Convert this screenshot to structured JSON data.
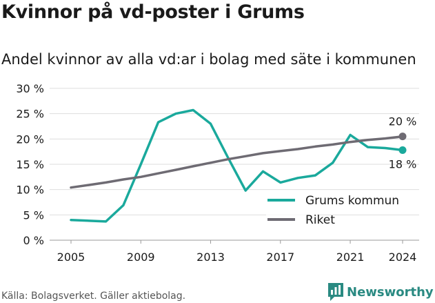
{
  "title": "Kvinnor på vd-poster i Grums",
  "subtitle": "Andel kvinnor av alla vd:ar i bolag med säte i kommunen",
  "source": "Källa: Bolagsverket. Gäller aktiebolag.",
  "brand": "Newsworthy",
  "colors": {
    "grums": "#1aa99c",
    "riket": "#6e6b73",
    "grid": "#dddddd",
    "text": "#1a1a1a"
  },
  "chart_data": {
    "type": "line",
    "x": [
      2005,
      2006,
      2007,
      2008,
      2009,
      2010,
      2011,
      2012,
      2013,
      2014,
      2015,
      2016,
      2017,
      2018,
      2019,
      2020,
      2021,
      2022,
      2023,
      2024
    ],
    "series": [
      {
        "name": "Grums kommun",
        "color": "#1aa99c",
        "values": [
          4.0,
          null,
          3.7,
          6.9,
          15.0,
          23.3,
          25.0,
          25.7,
          23.0,
          16.3,
          9.8,
          13.6,
          11.4,
          12.3,
          12.8,
          15.3,
          20.8,
          18.4,
          18.2,
          17.8
        ],
        "end_label": "18 %"
      },
      {
        "name": "Riket",
        "color": "#6e6b73",
        "values": [
          10.4,
          10.9,
          11.4,
          12.0,
          12.5,
          13.2,
          13.9,
          14.6,
          15.3,
          16.0,
          16.6,
          17.2,
          17.6,
          18.0,
          18.5,
          18.9,
          19.4,
          19.8,
          20.1,
          20.5
        ],
        "end_label": "20 %"
      }
    ],
    "xticks": [
      "2005",
      "2009",
      "2013",
      "2017",
      "2021",
      "2024"
    ],
    "yticks": [
      "0 %",
      "5 %",
      "10 %",
      "15 %",
      "20 %",
      "25 %",
      "30 %"
    ],
    "ylim": [
      0,
      30
    ],
    "xlim": [
      2005,
      2024
    ],
    "grid": true,
    "legend_position": "bottom-right"
  }
}
